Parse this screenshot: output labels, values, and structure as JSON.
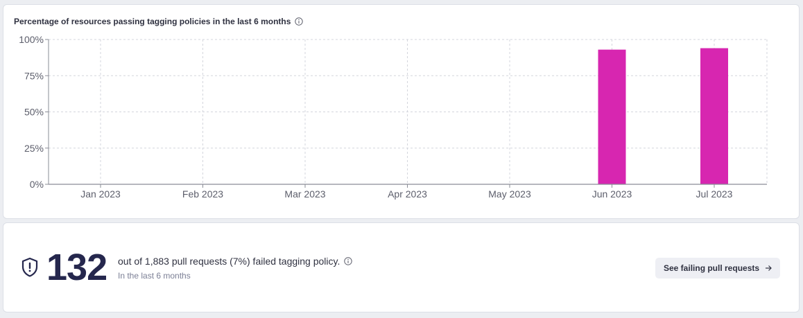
{
  "chart": {
    "title": "Percentage of resources passing tagging policies in the last 6 months"
  },
  "chart_data": {
    "type": "bar",
    "title": "Percentage of resources passing tagging policies in the last 6 months",
    "categories": [
      "Jan 2023",
      "Feb 2023",
      "Mar 2023",
      "Apr 2023",
      "May 2023",
      "Jun 2023",
      "Jul 2023"
    ],
    "values": [
      null,
      null,
      null,
      null,
      null,
      93,
      94
    ],
    "y_ticks": [
      "0%",
      "25%",
      "50%",
      "75%",
      "100%"
    ],
    "ylim": [
      0,
      100
    ],
    "xlabel": "",
    "ylabel": "",
    "grid": true,
    "bar_color": "#d726b0"
  },
  "stats": {
    "count": "132",
    "description": "out of 1,883 pull requests (7%) failed tagging policy.",
    "subtext": "In the last 6 months",
    "cta_label": "See failing pull requests"
  },
  "icons": {
    "info": "info-icon",
    "shield": "shield-alert-icon",
    "arrow": "arrow-right-icon"
  }
}
